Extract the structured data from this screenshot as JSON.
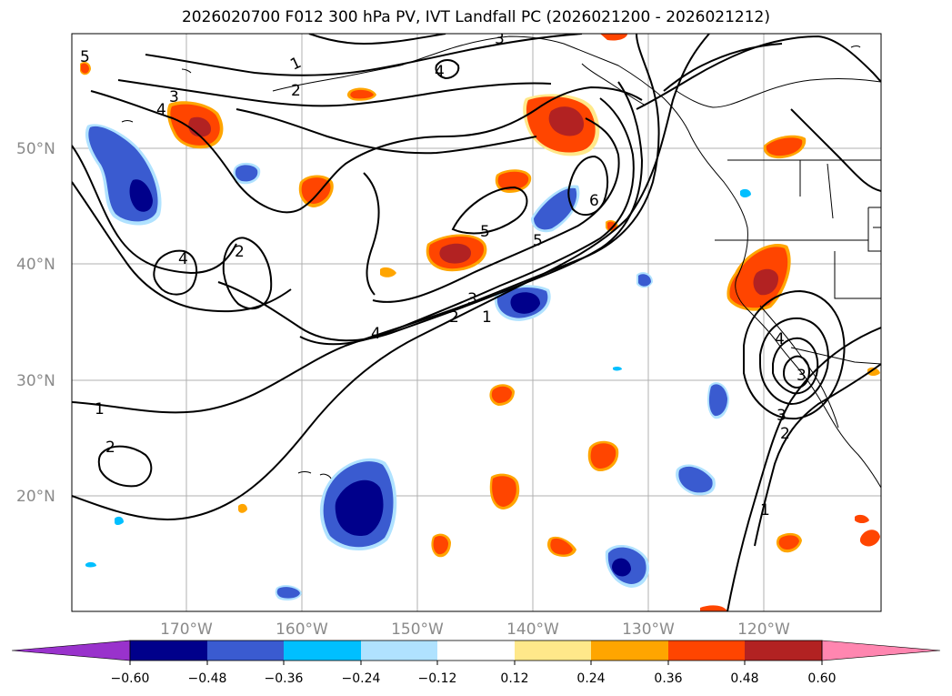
{
  "title": "2026020700 F012 300 hPa PV, IVT Landfall PC (2026021200 - 2026021212)",
  "map": {
    "lat_labels": [
      "50°N",
      "40°N",
      "30°N",
      "20°N"
    ],
    "lon_labels": [
      "170°W",
      "160°W",
      "150°W",
      "140°W",
      "130°W",
      "120°W"
    ],
    "grid": true,
    "contour_labels": [
      "1",
      "2",
      "3",
      "4",
      "5",
      "6"
    ]
  },
  "colorbar": {
    "ticks": [
      "−0.60",
      "−0.48",
      "−0.36",
      "−0.24",
      "−0.12",
      "0.12",
      "0.24",
      "0.36",
      "0.48",
      "0.60"
    ],
    "colors": [
      "#9932cc",
      "#00008b",
      "#3a5bd0",
      "#00bfff",
      "#b0e2ff",
      "#ffffff",
      "#ffe88a",
      "#ffa500",
      "#ff4500",
      "#b22222",
      "#ff86b0"
    ]
  }
}
